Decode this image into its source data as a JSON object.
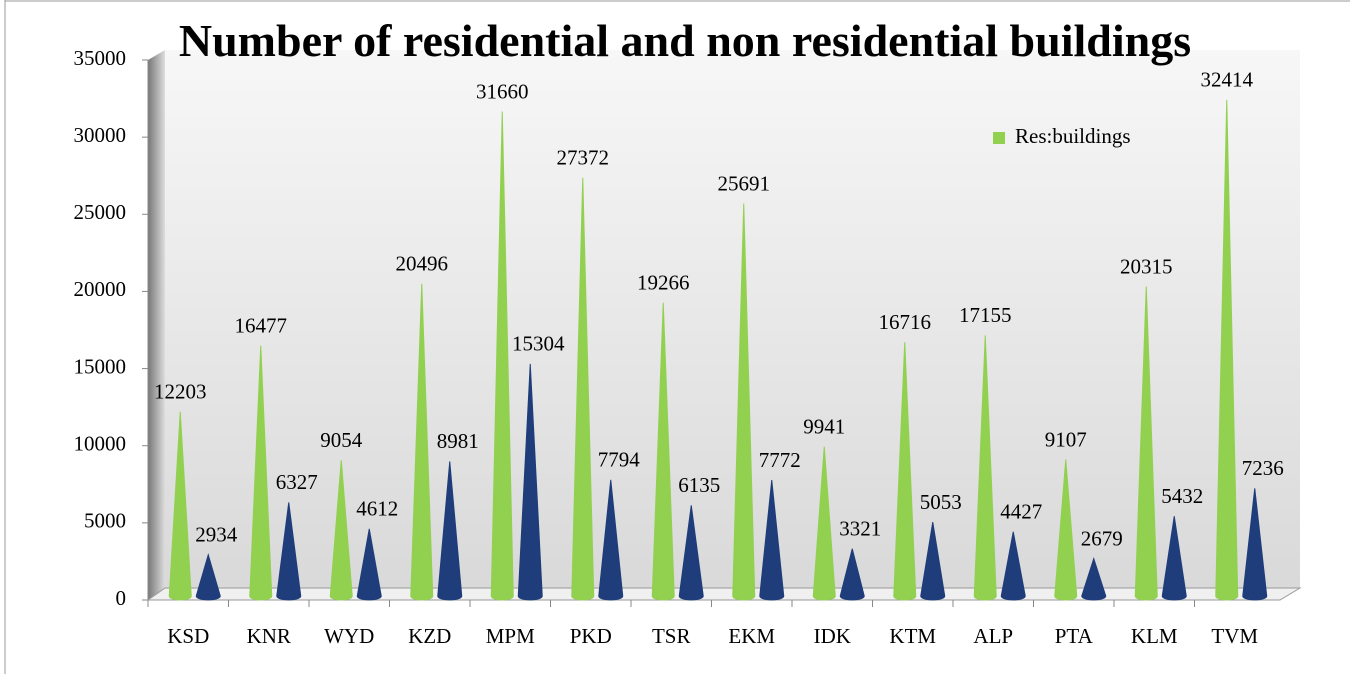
{
  "chart_data": {
    "type": "cone",
    "title": "Number of residential and non residential buildings",
    "categories": [
      "KSD",
      "KNR",
      "WYD",
      "KZD",
      "MPM",
      "PKD",
      "TSR",
      "EKM",
      "IDK",
      "KTM",
      "ALP",
      "PTA",
      "KLM",
      "TVM"
    ],
    "series": [
      {
        "name": "Res:buildings",
        "color": "#92d050",
        "values": [
          12203,
          16477,
          9054,
          20496,
          31660,
          27372,
          19266,
          25691,
          9941,
          16716,
          17155,
          9107,
          20315,
          32414
        ]
      },
      {
        "color": "#1f3d7a",
        "values": [
          2934,
          6327,
          4612,
          8981,
          15304,
          7794,
          6135,
          7772,
          3321,
          5053,
          4427,
          2679,
          5432,
          7236
        ]
      }
    ],
    "ylim": [
      0,
      35000
    ],
    "yticks": [
      0,
      5000,
      10000,
      15000,
      20000,
      25000,
      30000,
      35000
    ],
    "legend": "top-right"
  }
}
